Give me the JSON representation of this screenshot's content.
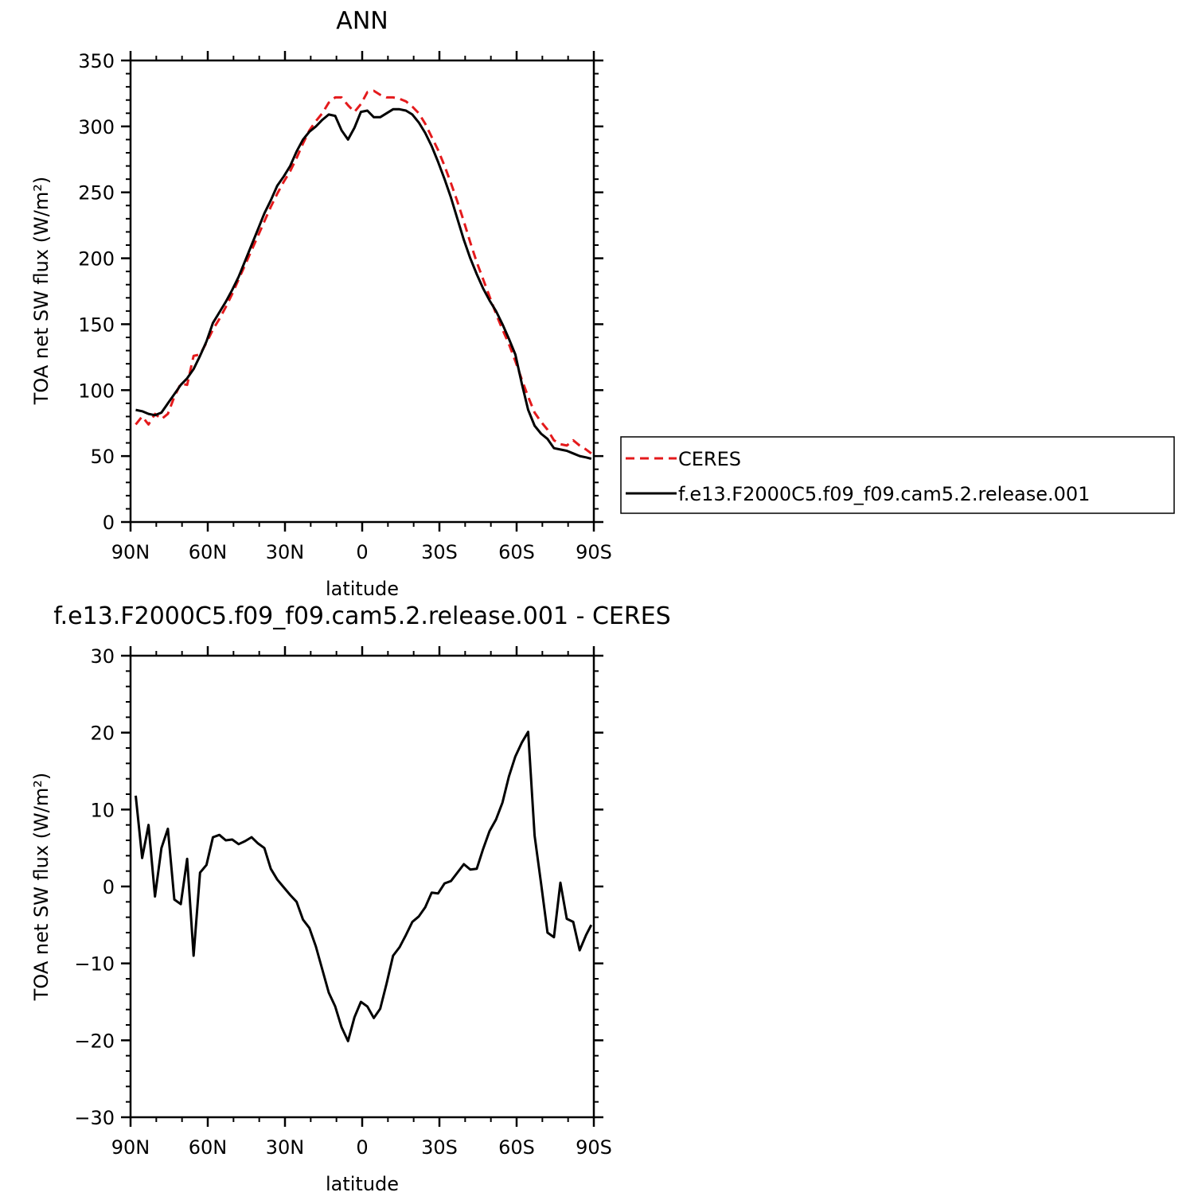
{
  "chart_data": [
    {
      "type": "line",
      "title": "ANN",
      "xlabel": "latitude",
      "ylabel": "TOA net SW flux (W/m²)",
      "xlim": [
        90,
        -90
      ],
      "ylim": [
        0,
        350
      ],
      "x_ticks": [
        90,
        60,
        30,
        0,
        -30,
        -60,
        -90
      ],
      "x_tick_labels": [
        "90N",
        "60N",
        "30N",
        "0",
        "30S",
        "60S",
        "90S"
      ],
      "y_ticks": [
        0,
        50,
        100,
        150,
        200,
        250,
        300,
        350
      ],
      "y_tick_labels": [
        "0",
        "50",
        "100",
        "150",
        "200",
        "250",
        "300",
        "350"
      ],
      "legend_position": "right",
      "series": [
        {
          "name": "CERES",
          "color": "#e41a1c",
          "style": "dashed",
          "x": [
            88,
            85.5,
            83,
            80.5,
            78,
            75.5,
            73,
            70.5,
            68,
            65.5,
            63,
            60.5,
            58,
            55.5,
            53,
            50.5,
            48,
            45.5,
            43,
            40.5,
            38,
            35.5,
            33,
            30.5,
            28,
            25.5,
            23,
            20.5,
            18,
            15.5,
            13,
            10.5,
            8,
            5.5,
            3,
            0.5,
            -2,
            -4.5,
            -7,
            -9.5,
            -12,
            -14.5,
            -17,
            -19.5,
            -22,
            -24.5,
            -27,
            -29.5,
            -32,
            -34.5,
            -37,
            -39.5,
            -42,
            -44.5,
            -47,
            -49.5,
            -52,
            -54.5,
            -57,
            -59.5,
            -62,
            -64.5,
            -67,
            -69.5,
            -72,
            -74.5,
            -77,
            -79.5,
            -82,
            -84.5,
            -87,
            -89
          ],
          "y": [
            74,
            80,
            74,
            82,
            78,
            82,
            95,
            105,
            104,
            126,
            127,
            136,
            146,
            154,
            163,
            173,
            184,
            195,
            206,
            217,
            228,
            239,
            249,
            258,
            266,
            276,
            287,
            297,
            304,
            310,
            318,
            322,
            322,
            316,
            311,
            317,
            326,
            327,
            324,
            322,
            322,
            321,
            319,
            315,
            310,
            302,
            292,
            282,
            270,
            257,
            243,
            228,
            212,
            197,
            184,
            171,
            158,
            146,
            135,
            122,
            108,
            95,
            83,
            76,
            70,
            62,
            59,
            58,
            62,
            58,
            55,
            52
          ]
        },
        {
          "name": "f.e13.F2000C5.f09_f09.cam5.2.release.001",
          "color": "#000000",
          "style": "solid",
          "x": [
            88,
            85.5,
            83,
            80.5,
            78,
            75.5,
            73,
            70.5,
            68,
            65.5,
            63,
            60.5,
            58,
            55.5,
            53,
            50.5,
            48,
            45.5,
            43,
            40.5,
            38,
            35.5,
            33,
            30.5,
            28,
            25.5,
            23,
            20.5,
            18,
            15.5,
            13,
            10.5,
            8,
            5.5,
            3,
            0.5,
            -2,
            -4.5,
            -7,
            -9.5,
            -12,
            -14.5,
            -17,
            -19.5,
            -22,
            -24.5,
            -27,
            -29.5,
            -32,
            -34.5,
            -37,
            -39.5,
            -42,
            -44.5,
            -47,
            -49.5,
            -52,
            -54.5,
            -57,
            -59.5,
            -62,
            -64.5,
            -67,
            -69.5,
            -72,
            -74.5,
            -77,
            -79.5,
            -82,
            -84.5,
            -87,
            -89
          ],
          "y": [
            85,
            84,
            82,
            81,
            83,
            90,
            97,
            104,
            109,
            116,
            126,
            137,
            151,
            159,
            167,
            176,
            186,
            198,
            210,
            222,
            234,
            244,
            255,
            262,
            270,
            281,
            290,
            296,
            300,
            305,
            309,
            308,
            297,
            290,
            299,
            311,
            312,
            307,
            307,
            310,
            313,
            313,
            312,
            309,
            303,
            295,
            285,
            273,
            260,
            246,
            230,
            214,
            200,
            188,
            177,
            168,
            160,
            150,
            139,
            127,
            105,
            85,
            73,
            67,
            63,
            56,
            55,
            54,
            52,
            50,
            49,
            48
          ]
        }
      ]
    },
    {
      "type": "line",
      "title": "f.e13.F2000C5.f09_f09.cam5.2.release.001  - CERES",
      "xlabel": "latitude",
      "ylabel": "TOA net SW flux (W/m²)",
      "xlim": [
        90,
        -90
      ],
      "ylim": [
        -30,
        30
      ],
      "x_ticks": [
        90,
        60,
        30,
        0,
        -30,
        -60,
        -90
      ],
      "x_tick_labels": [
        "90N",
        "60N",
        "30N",
        "0",
        "30S",
        "60S",
        "90S"
      ],
      "y_ticks": [
        -30,
        -20,
        -10,
        0,
        10,
        20,
        30
      ],
      "y_tick_labels": [
        "−30",
        "−20",
        "−10",
        "0",
        "10",
        "20",
        "30"
      ],
      "series": [
        {
          "color": "#000000",
          "style": "solid",
          "x": [
            88,
            85.5,
            83,
            80.5,
            78,
            75.5,
            73,
            70.5,
            68,
            65.5,
            63,
            60.5,
            58,
            55.5,
            53,
            50.5,
            48,
            45.5,
            43,
            40.5,
            38,
            35.5,
            33,
            30.5,
            28,
            25.5,
            23,
            20.5,
            18,
            15.5,
            13,
            10.5,
            8,
            5.5,
            3,
            0.5,
            -2,
            -4.5,
            -7,
            -9.5,
            -12,
            -14.5,
            -17,
            -19.5,
            -22,
            -24.5,
            -27,
            -29.5,
            -32,
            -34.5,
            -37,
            -39.5,
            -42,
            -44.5,
            -47,
            -49.5,
            -52,
            -54.5,
            -57,
            -59.5,
            -62,
            -64.5,
            -67,
            -69.5,
            -72,
            -74.5,
            -77,
            -79.5,
            -82,
            -84.5,
            -87,
            -89
          ],
          "y": [
            11.8,
            3.7,
            8.0,
            -1.3,
            5.0,
            7.5,
            -1.7,
            -2.3,
            3.6,
            -9.0,
            1.8,
            2.8,
            6.4,
            6.7,
            6.0,
            6.1,
            5.5,
            5.9,
            6.4,
            5.6,
            5.0,
            2.3,
            0.9,
            -0.1,
            -1.1,
            -2.0,
            -4.3,
            -5.4,
            -7.8,
            -10.8,
            -13.8,
            -15.6,
            -18.3,
            -20.1,
            -17.0,
            -15.0,
            -15.6,
            -17.1,
            -15.9,
            -12.6,
            -9.0,
            -7.9,
            -6.3,
            -4.6,
            -3.9,
            -2.7,
            -0.8,
            -0.9,
            0.4,
            0.7,
            1.8,
            2.9,
            2.2,
            2.3,
            4.9,
            7.2,
            8.7,
            10.9,
            14.3,
            16.9,
            18.7,
            20.1,
            6.6,
            0.4,
            -6.0,
            -6.6,
            0.5,
            -4.2,
            -4.6,
            -8.3,
            -6.3,
            -5.0
          ]
        }
      ]
    }
  ]
}
